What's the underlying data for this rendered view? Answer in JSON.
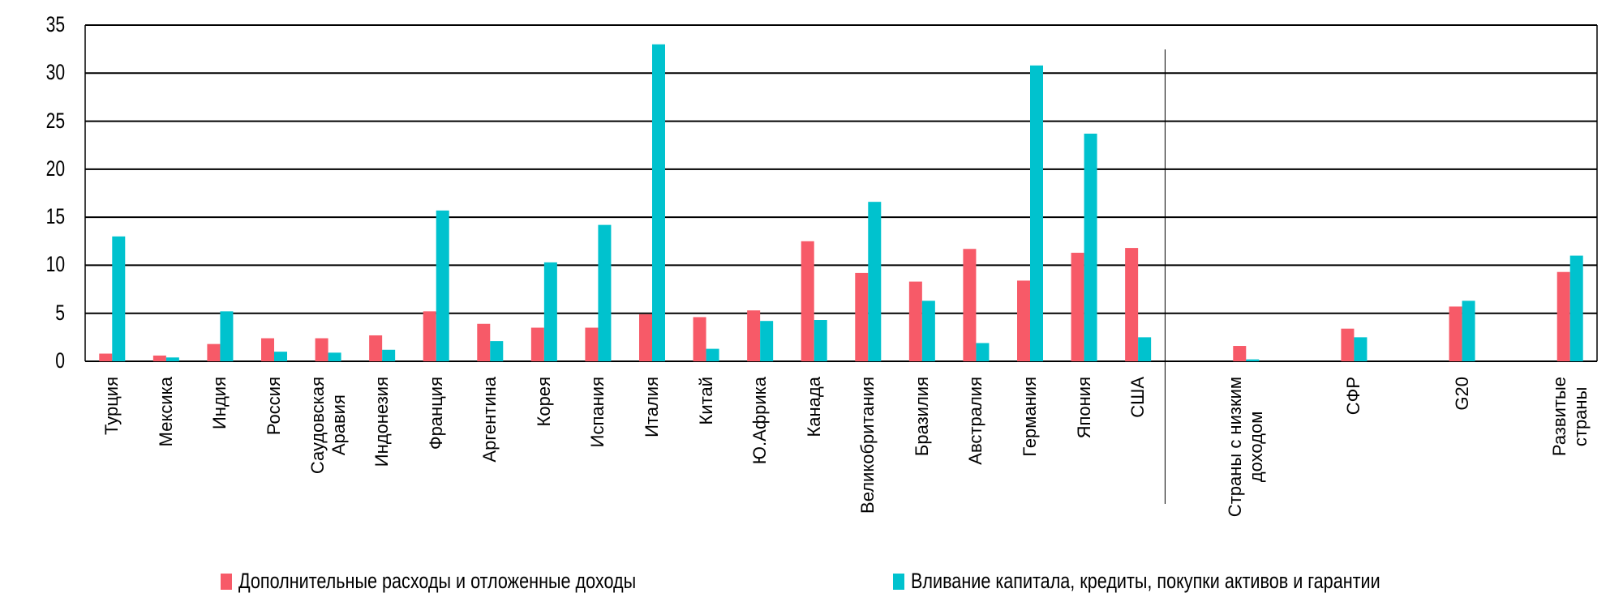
{
  "chart_data": {
    "type": "bar",
    "title": "",
    "xlabel": "",
    "ylabel": "",
    "ylim": [
      0,
      35
    ],
    "yticks": [
      "0",
      "5",
      "10",
      "15",
      "20",
      "25",
      "30",
      "35"
    ],
    "grid": true,
    "legend_position": "bottom",
    "categories": [
      "Турция",
      "Мексика",
      "Индия",
      "Россия",
      "Саудовская\nАравия",
      "Индонезия",
      "Франция",
      "Аргентина",
      "Корея",
      "Испания",
      "Италия",
      "Китай",
      "Ю.Африка",
      "Канада",
      "Великобритания",
      "Бразилия",
      "Австралия",
      "Германия",
      "Япония",
      "США",
      "Страны с низким\nдоходом",
      "СФР",
      "G20",
      "Развитые\nстраны"
    ],
    "group_separator_after": "США",
    "series": [
      {
        "name": "Дополнительные расходы и отложенные доходы",
        "color": "#f75a68",
        "values": [
          0.8,
          0.6,
          1.8,
          2.4,
          2.4,
          2.7,
          5.2,
          3.9,
          3.5,
          3.5,
          4.9,
          4.6,
          5.3,
          12.5,
          9.2,
          8.3,
          11.7,
          8.4,
          11.3,
          11.8,
          1.6,
          3.4,
          5.7,
          9.3
        ]
      },
      {
        "name": "Вливание капитала, кредиты, покупки активов и гарантии",
        "color": "#00c2ce",
        "values": [
          13.0,
          0.4,
          5.2,
          1.0,
          0.9,
          1.2,
          15.7,
          2.1,
          10.3,
          14.2,
          33.0,
          1.3,
          4.2,
          4.3,
          16.6,
          6.3,
          1.9,
          30.8,
          23.7,
          2.5,
          0.2,
          2.5,
          6.3,
          11.0
        ]
      }
    ]
  }
}
